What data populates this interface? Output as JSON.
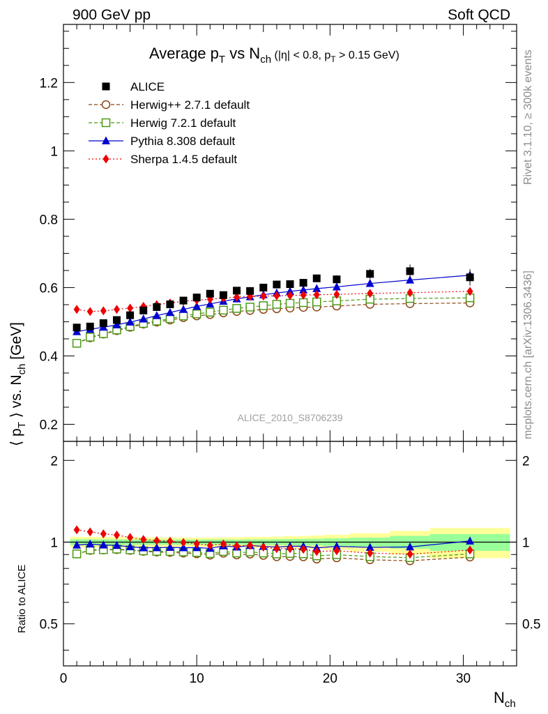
{
  "header": {
    "left": "900 GeV pp",
    "right": "Soft QCD"
  },
  "side_labels": {
    "top": "Rivet 3.1.10, ≥ 300k events",
    "bottom": "mcplots.cern.ch [arXiv:1306.3436]"
  },
  "analysis_id": "ALICE_2010_S8706239",
  "chart_data": {
    "type": "scatter",
    "title": {
      "main": "Average p",
      "main_sub": "T",
      "main_mid": " vs N",
      "main_sub2": "ch",
      "cond_open": " (|η| < 0.8, p",
      "cond_sub": "T",
      "cond_close": " > 0.15 GeV)"
    },
    "xlabel": {
      "main": "N",
      "sub": "ch"
    },
    "ylabel": {
      "open": "⟨ p",
      "sub": "T",
      "mid": " ⟩ vs. N",
      "sub2": "ch",
      "close": " [GeV]"
    },
    "ratio_ylabel": "Ratio to ALICE",
    "xlim": [
      0,
      34
    ],
    "ylim": [
      0.15,
      1.37
    ],
    "ratio_ylim": [
      0.35,
      2.35
    ],
    "x_ticks": [
      0,
      10,
      20,
      30
    ],
    "y_ticks": [
      0.2,
      0.4,
      0.6,
      0.8,
      1,
      1.2
    ],
    "y_tick_labels": [
      "0.2",
      "0.4",
      "0.6",
      "0.8",
      "1",
      "1.2"
    ],
    "ratio_ticks": [
      0.5,
      1,
      2
    ],
    "ratio_tick_labels": [
      "0.5",
      "1",
      "2"
    ],
    "legend_position": "top-left",
    "reference": {
      "name": "ALICE",
      "x": [
        1,
        2,
        3,
        4,
        5,
        6,
        7,
        8,
        9,
        10,
        11,
        12,
        13,
        14,
        15,
        16,
        17,
        18,
        19,
        20.5,
        23,
        26,
        30.5
      ],
      "y": [
        0.483,
        0.486,
        0.496,
        0.505,
        0.519,
        0.533,
        0.543,
        0.551,
        0.562,
        0.571,
        0.582,
        0.578,
        0.591,
        0.59,
        0.6,
        0.609,
        0.61,
        0.614,
        0.627,
        0.624,
        0.64,
        0.648,
        0.63
      ],
      "band_edges": [
        0.5,
        1.5,
        2.5,
        3.5,
        4.5,
        5.5,
        6.5,
        7.5,
        8.5,
        9.5,
        10.5,
        11.5,
        12.5,
        13.5,
        14.5,
        15.5,
        16.5,
        17.5,
        18.5,
        19.5,
        21.5,
        24.5,
        27.5,
        33.5
      ],
      "stat_err": [
        0.012,
        0.012,
        0.012,
        0.012,
        0.012,
        0.012,
        0.012,
        0.012,
        0.012,
        0.012,
        0.013,
        0.013,
        0.013,
        0.014,
        0.014,
        0.015,
        0.016,
        0.017,
        0.018,
        0.02,
        0.025,
        0.035,
        0.045
      ],
      "total_err": [
        0.022,
        0.022,
        0.022,
        0.022,
        0.022,
        0.022,
        0.022,
        0.022,
        0.022,
        0.022,
        0.023,
        0.024,
        0.025,
        0.026,
        0.027,
        0.029,
        0.031,
        0.033,
        0.036,
        0.04,
        0.05,
        0.065,
        0.08
      ]
    },
    "series": [
      {
        "name": "Herwig++ 2.7.1 default",
        "color": "#8B4513",
        "marker": "open-circle",
        "line": "dashed",
        "x": [
          1,
          2,
          3,
          4,
          5,
          6,
          7,
          8,
          9,
          10,
          11,
          12,
          13,
          14,
          15,
          16,
          17,
          18,
          19,
          20.5,
          23,
          26,
          30.5
        ],
        "y": [
          0.437,
          0.453,
          0.464,
          0.474,
          0.484,
          0.493,
          0.499,
          0.505,
          0.512,
          0.517,
          0.521,
          0.526,
          0.53,
          0.533,
          0.536,
          0.538,
          0.54,
          0.542,
          0.543,
          0.546,
          0.551,
          0.553,
          0.555
        ]
      },
      {
        "name": "Herwig 7.2.1 default",
        "color": "#4A9A14",
        "marker": "open-square",
        "line": "dashed",
        "x": [
          1,
          2,
          3,
          4,
          5,
          6,
          7,
          8,
          9,
          10,
          11,
          12,
          13,
          14,
          15,
          16,
          17,
          18,
          19,
          20.5,
          23,
          26,
          30.5
        ],
        "y": [
          0.437,
          0.455,
          0.465,
          0.476,
          0.486,
          0.495,
          0.502,
          0.509,
          0.517,
          0.523,
          0.528,
          0.534,
          0.539,
          0.543,
          0.547,
          0.551,
          0.554,
          0.556,
          0.558,
          0.561,
          0.566,
          0.568,
          0.57
        ]
      },
      {
        "name": "Pythia 8.308 default",
        "color": "#0000D0",
        "marker": "filled-triangle",
        "line": "solid",
        "x": [
          1,
          2,
          3,
          4,
          5,
          6,
          7,
          8,
          9,
          10,
          11,
          12,
          13,
          14,
          15,
          16,
          17,
          18,
          19,
          20.5,
          23,
          26,
          30.5
        ],
        "y": [
          0.471,
          0.478,
          0.484,
          0.491,
          0.499,
          0.508,
          0.518,
          0.527,
          0.536,
          0.545,
          0.552,
          0.56,
          0.567,
          0.573,
          0.579,
          0.584,
          0.589,
          0.593,
          0.597,
          0.602,
          0.612,
          0.622,
          0.636
        ]
      },
      {
        "name": "Sherpa 1.4.5 default",
        "color": "#EE0000",
        "marker": "filled-diamond",
        "line": "dotted",
        "x": [
          1,
          2,
          3,
          4,
          5,
          6,
          7,
          8,
          9,
          10,
          11,
          12,
          13,
          14,
          15,
          16,
          17,
          18,
          19,
          20.5,
          23,
          26,
          30.5
        ],
        "y": [
          0.536,
          0.53,
          0.532,
          0.536,
          0.54,
          0.545,
          0.55,
          0.555,
          0.56,
          0.563,
          0.566,
          0.569,
          0.572,
          0.574,
          0.575,
          0.576,
          0.577,
          0.578,
          0.579,
          0.58,
          0.583,
          0.585,
          0.589
        ]
      }
    ]
  }
}
